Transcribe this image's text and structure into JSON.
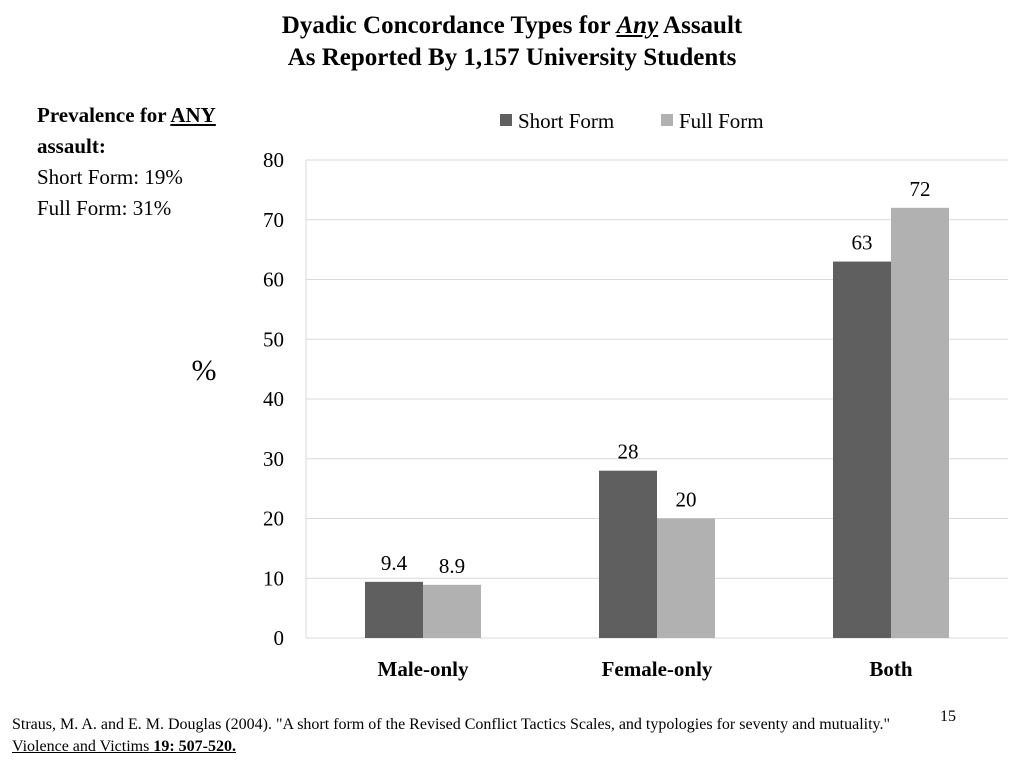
{
  "title": {
    "line1_before": "Dyadic Concordance Types for ",
    "line1_emph": "Any",
    "line1_after": " Assault",
    "line2": "As Reported By 1,157 University Students"
  },
  "prevalence": {
    "heading_before": "Prevalence for ",
    "heading_emph": "ANY",
    "heading_after": "assault:",
    "short_form": "Short Form: 19%",
    "full_form": "Full Form: 31%"
  },
  "source": {
    "text": "Straus, M. A. and E. M. Douglas (2004). \"A short form of the Revised Conflict Tactics Scales, and typologies for seventy and mutuality.\" ",
    "journal": "Violence and Victims",
    "volume": "19: 507-520."
  },
  "page_number": "15",
  "chart_data": {
    "type": "bar",
    "title": "",
    "xlabel": "",
    "ylabel": "%",
    "categories": [
      "Male-only",
      "Female-only",
      "Both"
    ],
    "series": [
      {
        "name": "Short Form",
        "values": [
          9.4,
          28,
          63
        ],
        "labels": [
          "9.4",
          "28",
          "63"
        ],
        "color": "#5f5f5f"
      },
      {
        "name": "Full Form",
        "values": [
          8.9,
          20,
          72
        ],
        "labels": [
          "8.9",
          "20",
          "72"
        ],
        "color": "#b1b1b1"
      }
    ],
    "ylim": [
      0,
      80
    ],
    "yticks": [
      0,
      10,
      20,
      30,
      40,
      50,
      60,
      70,
      80
    ],
    "grid": true,
    "gridline_color": "#d9d9d9",
    "legend_position": "top"
  }
}
